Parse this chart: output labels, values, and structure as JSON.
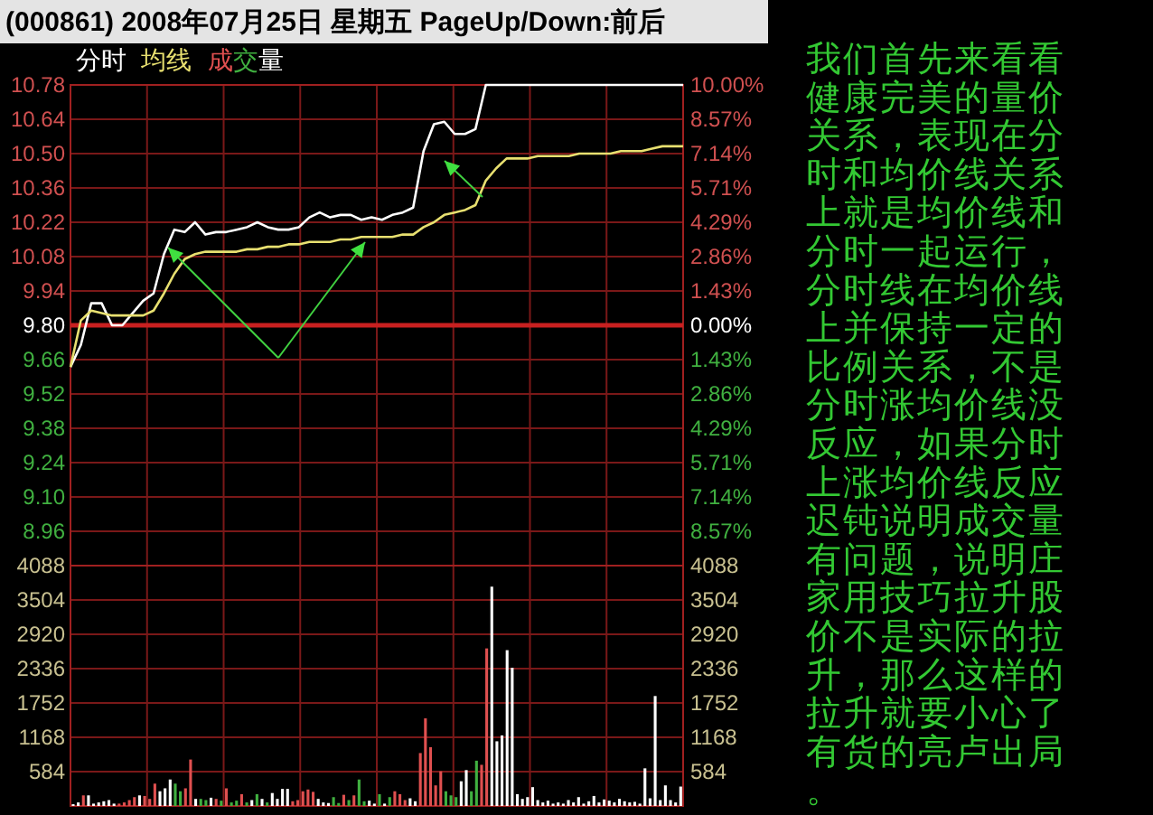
{
  "chart_data": [
    {
      "type": "line",
      "title": "(000861) 2008年07月25日 星期五 PageUp/Down:前后",
      "categories": [
        null,
        null,
        null,
        null,
        null,
        null,
        null,
        null,
        null,
        null,
        null,
        null,
        null,
        null,
        null,
        null,
        null,
        null,
        null,
        null,
        null,
        null,
        null,
        null,
        null,
        null,
        null,
        null,
        null,
        null,
        null,
        null,
        null,
        null,
        null,
        null,
        null,
        null,
        null,
        null,
        null,
        null,
        null,
        null,
        null,
        null,
        null,
        null,
        null,
        null,
        null,
        null,
        null,
        null,
        null,
        null,
        null,
        null,
        null,
        null
      ],
      "series": [
        {
          "name": "分时",
          "color": "#ffffff",
          "values": [
            9.63,
            9.72,
            9.89,
            9.89,
            9.8,
            9.8,
            9.85,
            9.9,
            9.93,
            10.09,
            10.19,
            10.18,
            10.22,
            10.17,
            10.18,
            10.18,
            10.19,
            10.2,
            10.22,
            10.2,
            10.19,
            10.19,
            10.2,
            10.24,
            10.26,
            10.24,
            10.25,
            10.25,
            10.23,
            10.24,
            10.23,
            10.25,
            10.26,
            10.28,
            10.51,
            10.62,
            10.63,
            10.58,
            10.58,
            10.6,
            10.78,
            10.78,
            10.78,
            10.78,
            10.78,
            10.78,
            10.78,
            10.78,
            10.78,
            10.78,
            10.78,
            10.78,
            10.78,
            10.78,
            10.78,
            10.78,
            10.78,
            10.78,
            10.78,
            10.78
          ]
        },
        {
          "name": "均线",
          "color": "#e8e070",
          "values": [
            9.63,
            9.82,
            9.86,
            9.85,
            9.84,
            9.84,
            9.84,
            9.84,
            9.86,
            9.93,
            10.01,
            10.07,
            10.09,
            10.1,
            10.1,
            10.1,
            10.1,
            10.11,
            10.11,
            10.12,
            10.12,
            10.13,
            10.13,
            10.14,
            10.14,
            10.14,
            10.15,
            10.15,
            10.16,
            10.16,
            10.16,
            10.16,
            10.17,
            10.17,
            10.2,
            10.22,
            10.25,
            10.26,
            10.27,
            10.29,
            10.39,
            10.44,
            10.48,
            10.48,
            10.48,
            10.49,
            10.49,
            10.49,
            10.49,
            10.5,
            10.5,
            10.5,
            10.5,
            10.51,
            10.51,
            10.51,
            10.52,
            10.53,
            10.53,
            10.53
          ]
        }
      ],
      "ylim": [
        8.82,
        10.78
      ],
      "yticks": [
        {
          "value": 10.78,
          "label": "10.78"
        },
        {
          "value": 10.64,
          "label": "10.64"
        },
        {
          "value": 10.5,
          "label": "10.50"
        },
        {
          "value": 10.36,
          "label": "10.36"
        },
        {
          "value": 10.22,
          "label": "10.22"
        },
        {
          "value": 10.08,
          "label": "10.08"
        },
        {
          "value": 9.94,
          "label": "9.94"
        },
        {
          "value": 9.8,
          "label": "9.80"
        },
        {
          "value": 9.66,
          "label": "9.66"
        },
        {
          "value": 9.52,
          "label": "9.52"
        },
        {
          "value": 9.38,
          "label": "9.38"
        },
        {
          "value": 9.24,
          "label": "9.24"
        },
        {
          "value": 9.1,
          "label": "9.10"
        },
        {
          "value": 8.96,
          "label": "8.96"
        }
      ],
      "y2lim": [
        -10,
        10
      ],
      "y2ticks": [
        {
          "value": 10,
          "label": "10.00%"
        },
        {
          "value": 8.57,
          "label": "8.57%"
        },
        {
          "value": 7.14,
          "label": "7.14%"
        },
        {
          "value": 5.71,
          "label": "5.71%"
        },
        {
          "value": 4.29,
          "label": "4.29%"
        },
        {
          "value": 2.86,
          "label": "2.86%"
        },
        {
          "value": 1.43,
          "label": "1.43%"
        },
        {
          "value": 0,
          "label": "0.00%"
        },
        {
          "value": -1.43,
          "label": "1.43%"
        },
        {
          "value": -2.86,
          "label": "2.86%"
        },
        {
          "value": -4.29,
          "label": "4.29%"
        },
        {
          "value": -5.71,
          "label": "5.71%"
        },
        {
          "value": -7.14,
          "label": "7.14%"
        },
        {
          "value": -8.57,
          "label": "8.57%"
        }
      ],
      "ref_lines": [
        {
          "axis": "y",
          "value": 9.8,
          "color": "#c82020"
        }
      ],
      "grid": true,
      "legend": "top left",
      "annotations": [
        "我们首先来看看健康完美的量价关系，表现在分时和均价线关系上就是均价线和分时一起运行，分时线在均价线上并保持一定的比例关系，不是分时涨均价线没反应，如果分时上涨均价线反应迟钝说明成交量有问题，说明庄家用技巧拉升股价不是实际的拉升，那么这样的拉升就要小心了有货的亮卢出局。"
      ]
    },
    {
      "type": "bar",
      "categories": [
        null,
        null,
        null,
        null,
        null,
        null,
        null,
        null,
        null,
        null,
        null,
        null,
        null,
        null,
        null,
        null,
        null,
        null,
        null,
        null,
        null,
        null,
        null,
        null,
        null,
        null,
        null,
        null,
        null,
        null,
        null,
        null,
        null,
        null,
        null,
        null,
        null,
        null,
        null,
        null,
        null,
        null,
        null,
        null,
        null,
        null,
        null,
        null,
        null,
        null,
        null,
        null,
        null,
        null,
        null,
        null,
        null,
        null,
        null,
        null,
        null,
        null,
        null,
        null,
        null,
        null,
        null,
        null,
        null,
        null,
        null,
        null,
        null,
        null,
        null,
        null,
        null,
        null,
        null,
        null,
        null,
        null,
        null,
        null,
        null,
        null,
        null,
        null,
        null,
        null,
        null,
        null,
        null,
        null,
        null,
        null,
        null,
        null,
        null,
        null,
        null,
        null,
        null,
        null,
        null,
        null,
        null,
        null,
        null,
        null,
        null,
        null,
        null,
        null,
        null,
        null,
        null,
        null,
        null,
        null
      ],
      "series": [
        {
          "name": "成交量",
          "values": [
            30,
            60,
            180,
            180,
            40,
            60,
            80,
            100,
            40,
            40,
            60,
            100,
            150,
            180,
            170,
            120,
            380,
            250,
            300,
            450,
            380,
            250,
            300,
            790,
            120,
            120,
            100,
            140,
            120,
            90,
            300,
            60,
            90,
            200,
            60,
            100,
            200,
            120,
            60,
            220,
            120,
            290,
            290,
            80,
            100,
            250,
            280,
            240,
            120,
            60,
            50,
            150,
            50,
            190,
            100,
            180,
            450,
            80,
            90,
            40,
            200,
            40,
            150,
            250,
            200,
            100,
            130,
            80,
            900,
            1490,
            1000,
            350,
            590,
            250,
            180,
            150,
            420,
            610,
            250,
            770,
            700,
            2680,
            3730,
            1100,
            1200,
            2650,
            2350,
            200,
            120,
            150,
            320,
            100,
            60,
            90,
            40,
            60,
            40,
            100,
            60,
            150,
            40,
            80,
            170,
            60,
            110,
            90,
            60,
            120,
            80,
            60,
            70,
            40,
            640,
            130,
            1870,
            100,
            350,
            100,
            60,
            330
          ],
          "colors": [
            "#ffffff",
            "#ffffff",
            "#e05050",
            "#ffffff",
            "#ffffff",
            "#ffffff",
            "#ffffff",
            "#ffffff",
            "#ffffff",
            "#e05050",
            "#e05050",
            "#e05050",
            "#e05050",
            "#ffffff",
            "#e05050",
            "#e05050",
            "#e05050",
            "#ffffff",
            "#ffffff",
            "#ffffff",
            "#40b040",
            "#40b040",
            "#e05050",
            "#e05050",
            "#ffffff",
            "#40b040",
            "#40b040",
            "#ffffff",
            "#e05050",
            "#40b040",
            "#e05050",
            "#40b040",
            "#40b040",
            "#e05050",
            "#40b040",
            "#ffffff",
            "#40b040",
            "#ffffff",
            "#40b040",
            "#ffffff",
            "#ffffff",
            "#ffffff",
            "#ffffff",
            "#e05050",
            "#e05050",
            "#e05050",
            "#e05050",
            "#e05050",
            "#ffffff",
            "#ffffff",
            "#ffffff",
            "#40b040",
            "#40b040",
            "#e05050",
            "#40b040",
            "#e05050",
            "#40b040",
            "#40b040",
            "#ffffff",
            "#ffffff",
            "#40b040",
            "#ffffff",
            "#40b040",
            "#e05050",
            "#e05050",
            "#e05050",
            "#ffffff",
            "#ffffff",
            "#e05050",
            "#e05050",
            "#e05050",
            "#e05050",
            "#e05050",
            "#40b040",
            "#40b040",
            "#40b040",
            "#ffffff",
            "#ffffff",
            "#40b040",
            "#40b040",
            "#e05050",
            "#e05050",
            "#ffffff",
            "#ffffff",
            "#ffffff",
            "#ffffff",
            "#ffffff",
            "#ffffff",
            "#ffffff",
            "#ffffff",
            "#ffffff",
            "#ffffff",
            "#ffffff",
            "#ffffff",
            "#ffffff",
            "#ffffff",
            "#ffffff",
            "#ffffff",
            "#ffffff",
            "#ffffff",
            "#ffffff",
            "#ffffff",
            "#ffffff",
            "#ffffff",
            "#ffffff",
            "#ffffff",
            "#ffffff",
            "#ffffff",
            "#ffffff",
            "#ffffff",
            "#ffffff",
            "#ffffff",
            "#ffffff",
            "#ffffff",
            "#ffffff",
            "#ffffff",
            "#ffffff",
            "#ffffff",
            "#ffffff",
            "#ffffff"
          ]
        }
      ],
      "ylim": [
        0,
        4088
      ],
      "yticks": [
        584,
        1168,
        1752,
        2336,
        2920,
        3504,
        4088
      ],
      "y2lim": [
        0,
        4088
      ],
      "y2ticks": [
        584,
        1168,
        1752,
        2336,
        2920,
        3504,
        4088
      ],
      "grid": true,
      "legend": "top left"
    }
  ]
}
